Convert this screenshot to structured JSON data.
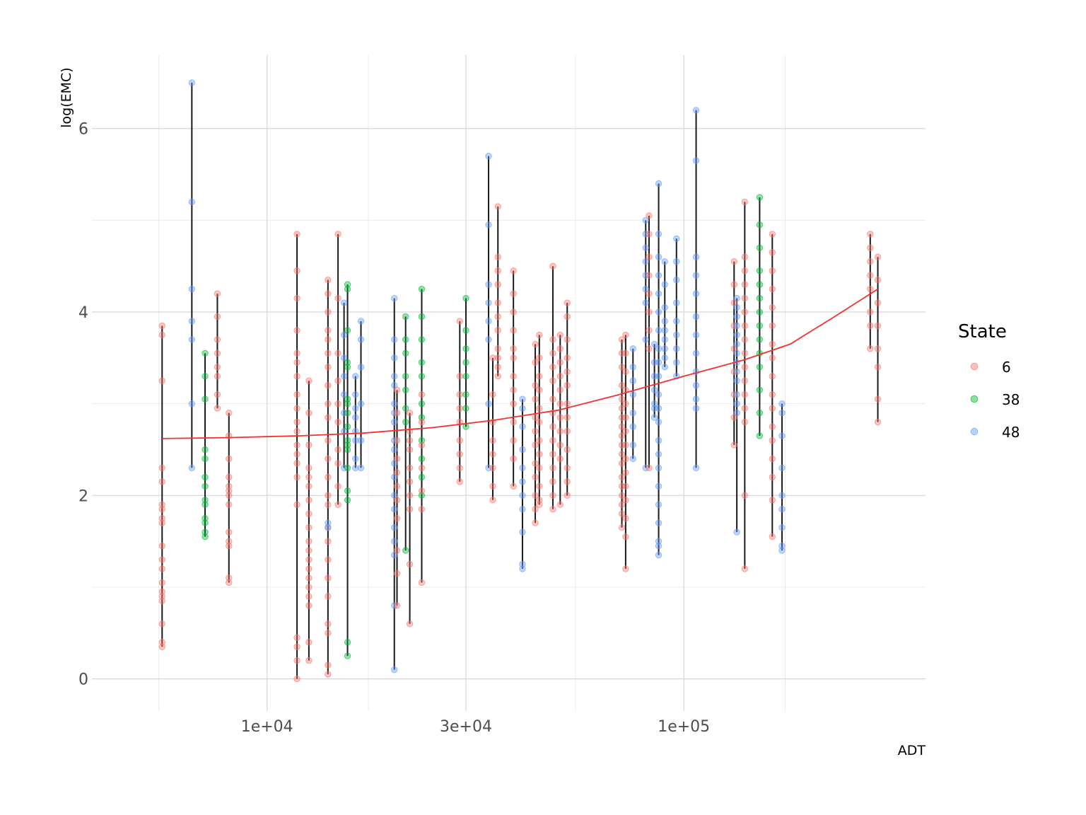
{
  "chart_data": {
    "type": "scatter",
    "title": "",
    "xlabel": "ADT",
    "ylabel": "log(EMC)",
    "x_scale": "log10",
    "xlim": [
      3800,
      380000
    ],
    "ylim": [
      -0.35,
      6.8
    ],
    "grid": true,
    "x_ticks": [
      {
        "value": 10000,
        "label": "1e+04"
      },
      {
        "value": 30000,
        "label": "3e+04"
      },
      {
        "value": 100000,
        "label": "1e+05"
      }
    ],
    "x_minor_ticks": [
      5500,
      17500,
      55000,
      175000
    ],
    "y_ticks": [
      {
        "value": 0,
        "label": "0"
      },
      {
        "value": 2,
        "label": "2"
      },
      {
        "value": 4,
        "label": "4"
      },
      {
        "value": 6,
        "label": "6"
      }
    ],
    "y_minor_ticks": [
      1,
      3,
      5
    ],
    "legend": {
      "title": "State",
      "position": "right",
      "entries": [
        {
          "label": "6",
          "color": "#F8766D"
        },
        {
          "label": "38",
          "color": "#00BA38"
        },
        {
          "label": "48",
          "color": "#619CFF"
        }
      ]
    },
    "groups": [
      {
        "adt": 5600,
        "state": "6",
        "values": [
          3.85,
          3.75,
          3.25,
          2.3,
          2.15,
          1.9,
          1.85,
          1.75,
          1.7,
          1.45,
          1.3,
          1.2,
          1.05,
          0.95,
          0.9,
          0.85,
          0.6,
          0.4,
          0.35
        ]
      },
      {
        "adt": 6600,
        "state": "48",
        "values": [
          6.5,
          5.2,
          4.25,
          3.9,
          3.7,
          3.0,
          2.3
        ]
      },
      {
        "adt": 7100,
        "state": "38",
        "values": [
          3.55,
          3.3,
          3.05,
          2.5,
          2.4,
          2.2,
          2.1,
          1.95,
          1.9,
          1.75,
          1.7,
          1.6,
          1.55
        ]
      },
      {
        "adt": 7600,
        "state": "6",
        "values": [
          4.2,
          3.95,
          3.7,
          3.55,
          3.4,
          3.3,
          3.1,
          2.95
        ]
      },
      {
        "adt": 8100,
        "state": "6",
        "values": [
          2.9,
          2.65,
          2.4,
          2.2,
          2.1,
          2.05,
          2.0,
          1.9,
          1.6,
          1.5,
          1.45,
          1.1,
          1.05
        ]
      },
      {
        "adt": 11800,
        "state": "6",
        "values": [
          4.85,
          4.45,
          4.15,
          3.8,
          3.55,
          3.45,
          3.3,
          3.1,
          2.95,
          2.8,
          2.7,
          2.55,
          2.45,
          2.35,
          2.2,
          1.9,
          0.45,
          0.35,
          0.2,
          0.0
        ]
      },
      {
        "adt": 12600,
        "state": "6",
        "values": [
          3.25,
          2.9,
          2.55,
          2.3,
          2.2,
          2.1,
          1.95,
          1.8,
          1.65,
          1.5,
          1.4,
          1.3,
          1.2,
          1.1,
          1.0,
          0.9,
          0.8,
          0.4,
          0.2
        ]
      },
      {
        "adt": 14000,
        "state": "6",
        "values": [
          4.35,
          4.2,
          4.0,
          3.8,
          3.7,
          3.55,
          3.4,
          3.2,
          3.0,
          2.85,
          2.6,
          2.4,
          2.2,
          2.0,
          1.9,
          1.65,
          1.5,
          1.3,
          1.1,
          0.9,
          0.6,
          0.5,
          0.15,
          0.05
        ]
      },
      {
        "adt": 14000,
        "state": "48",
        "values": [
          1.7,
          1.65
        ]
      },
      {
        "adt": 14800,
        "state": "6",
        "values": [
          4.85,
          4.15,
          3.55,
          3.25,
          3.0,
          2.8,
          2.5,
          2.35,
          2.1,
          1.9
        ]
      },
      {
        "adt": 15300,
        "state": "48",
        "values": [
          4.1,
          3.75,
          3.5,
          3.3,
          3.1,
          2.9,
          2.7,
          2.3
        ]
      },
      {
        "adt": 15600,
        "state": "38",
        "values": [
          4.3,
          4.25,
          3.8,
          3.45,
          3.4,
          3.05,
          3.0,
          2.9,
          2.75,
          2.6,
          2.55,
          2.5,
          2.3,
          2.05,
          1.95,
          0.4,
          0.25
        ]
      },
      {
        "adt": 16300,
        "state": "48",
        "values": [
          3.3,
          3.1,
          2.95,
          2.85,
          2.7,
          2.6,
          2.4,
          2.3
        ]
      },
      {
        "adt": 16800,
        "state": "48",
        "values": [
          3.9,
          3.7,
          3.4,
          3.0,
          2.6,
          2.3
        ]
      },
      {
        "adt": 20200,
        "state": "48",
        "values": [
          4.15,
          3.7,
          3.5,
          3.3,
          3.2,
          3.0,
          2.9,
          2.8,
          2.6,
          2.5,
          2.35,
          2.2,
          2.0,
          1.85,
          1.65,
          1.5,
          1.35,
          0.8,
          0.1
        ]
      },
      {
        "adt": 20500,
        "state": "6",
        "values": [
          3.15,
          2.9,
          2.6,
          2.4,
          2.25,
          2.1,
          1.95,
          1.75,
          1.4,
          1.15,
          0.8
        ]
      },
      {
        "adt": 21500,
        "state": "38",
        "values": [
          3.95,
          3.7,
          3.55,
          3.3,
          3.15,
          2.95,
          2.8,
          1.4
        ]
      },
      {
        "adt": 22000,
        "state": "6",
        "values": [
          2.9,
          2.7,
          2.6,
          2.5,
          2.3,
          2.15,
          2.0,
          1.85,
          1.25,
          0.6
        ]
      },
      {
        "adt": 23500,
        "state": "38",
        "values": [
          4.25,
          3.95,
          3.7,
          3.45,
          3.3,
          3.0,
          2.85,
          2.6,
          2.4,
          2.2,
          2.0
        ]
      },
      {
        "adt": 23500,
        "state": "6",
        "values": [
          3.1,
          2.8,
          2.55,
          2.3,
          2.05,
          1.85,
          1.05
        ]
      },
      {
        "adt": 29000,
        "state": "6",
        "values": [
          3.9,
          3.3,
          3.1,
          2.95,
          2.8,
          2.6,
          2.45,
          2.3,
          2.15
        ]
      },
      {
        "adt": 30000,
        "state": "38",
        "values": [
          4.15,
          3.8,
          3.6,
          3.45,
          3.3,
          3.1,
          2.95,
          2.75
        ]
      },
      {
        "adt": 34000,
        "state": "48",
        "values": [
          5.7,
          4.95,
          4.3,
          4.1,
          3.9,
          3.7,
          3.0,
          2.3
        ]
      },
      {
        "adt": 34800,
        "state": "6",
        "values": [
          3.5,
          3.1,
          2.8,
          2.6,
          2.45,
          2.3,
          2.1,
          1.95
        ]
      },
      {
        "adt": 35800,
        "state": "6",
        "values": [
          5.15,
          4.6,
          4.45,
          4.3,
          4.1,
          3.95,
          3.8,
          3.6,
          3.5,
          3.4,
          3.3
        ]
      },
      {
        "adt": 39000,
        "state": "6",
        "values": [
          4.45,
          4.2,
          4.0,
          3.8,
          3.6,
          3.5,
          3.3,
          3.15,
          3.0,
          2.8,
          2.6,
          2.4,
          2.1
        ]
      },
      {
        "adt": 41000,
        "state": "48",
        "values": [
          3.05,
          2.95,
          2.75,
          2.5,
          2.3,
          2.15,
          2.0,
          1.85,
          1.6,
          1.25,
          1.2
        ]
      },
      {
        "adt": 44000,
        "state": "6",
        "values": [
          3.65,
          3.45,
          3.2,
          3.05,
          2.85,
          2.7,
          2.55,
          2.35,
          2.2,
          2.0,
          1.85,
          1.7
        ]
      },
      {
        "adt": 45000,
        "state": "6",
        "values": [
          3.75,
          3.5,
          3.3,
          3.15,
          2.95,
          2.8,
          2.6,
          2.45,
          2.3,
          2.1,
          1.95,
          1.9
        ]
      },
      {
        "adt": 48500,
        "state": "6",
        "values": [
          4.5,
          3.7,
          3.55,
          3.4,
          3.25,
          3.05,
          2.9,
          2.75,
          2.6,
          2.45,
          2.3,
          2.15,
          2.0,
          1.85
        ]
      },
      {
        "adt": 50500,
        "state": "6",
        "values": [
          3.75,
          3.6,
          3.45,
          3.3,
          3.15,
          3.0,
          2.85,
          2.7,
          2.55,
          2.4,
          1.9
        ]
      },
      {
        "adt": 52500,
        "state": "6",
        "values": [
          4.1,
          3.95,
          3.7,
          3.5,
          3.35,
          3.2,
          3.0,
          2.85,
          2.7,
          2.5,
          2.3,
          2.15,
          2.0
        ]
      },
      {
        "adt": 71000,
        "state": "6",
        "values": [
          3.7,
          3.55,
          3.4,
          3.2,
          3.05,
          2.95,
          2.85,
          2.75,
          2.65,
          2.55,
          2.45,
          2.35,
          2.2,
          2.1,
          2.0,
          1.9,
          1.8,
          1.65
        ]
      },
      {
        "adt": 72500,
        "state": "6",
        "values": [
          3.75,
          3.55,
          3.35,
          3.15,
          3.0,
          2.85,
          2.7,
          2.55,
          2.4,
          2.25,
          2.1,
          1.95,
          1.75,
          1.55,
          1.2
        ]
      },
      {
        "adt": 75500,
        "state": "48",
        "values": [
          3.6,
          3.4,
          3.25,
          3.1,
          2.9,
          2.75,
          2.55,
          2.4
        ]
      },
      {
        "adt": 81000,
        "state": "48",
        "values": [
          5.0,
          4.85,
          4.7,
          4.55,
          4.4,
          4.25,
          4.1,
          3.7,
          2.3
        ]
      },
      {
        "adt": 82500,
        "state": "6",
        "values": [
          5.05,
          4.85,
          4.6,
          4.4,
          4.2,
          4.0,
          3.8,
          3.6,
          2.3
        ]
      },
      {
        "adt": 85000,
        "state": "48",
        "values": [
          3.65,
          3.45,
          3.3,
          3.15,
          3.0,
          2.95,
          2.85
        ]
      },
      {
        "adt": 87000,
        "state": "48",
        "values": [
          5.4,
          4.85,
          4.6,
          4.4,
          4.2,
          4.0,
          3.8,
          3.6,
          3.45,
          3.3,
          3.1,
          2.95,
          2.8,
          2.6,
          2.45,
          2.3,
          2.1,
          1.9,
          1.7,
          1.5,
          1.45,
          1.35
        ]
      },
      {
        "adt": 90000,
        "state": "48",
        "values": [
          4.55,
          4.3,
          4.05,
          3.9,
          3.8,
          3.7,
          3.6,
          3.5,
          3.4
        ]
      },
      {
        "adt": 96000,
        "state": "48",
        "values": [
          4.8,
          4.55,
          4.35,
          4.1,
          3.9,
          3.75,
          3.6,
          3.45,
          3.3
        ]
      },
      {
        "adt": 107000,
        "state": "48",
        "values": [
          6.2,
          5.65,
          4.6,
          4.4,
          4.2,
          3.95,
          3.75,
          3.55,
          3.35,
          3.2,
          3.05,
          2.95,
          2.3
        ]
      },
      {
        "adt": 132000,
        "state": "6",
        "values": [
          4.55,
          4.3,
          4.1,
          3.85,
          3.6,
          3.35,
          3.1,
          2.85,
          2.55
        ]
      },
      {
        "adt": 134000,
        "state": "48",
        "values": [
          4.15,
          4.05,
          3.95,
          3.85,
          3.75,
          3.65,
          3.55,
          3.45,
          3.35,
          3.25,
          3.1,
          3.0,
          2.9,
          1.6
        ]
      },
      {
        "adt": 140000,
        "state": "6",
        "values": [
          5.2,
          4.6,
          4.45,
          4.3,
          4.15,
          4.0,
          3.85,
          3.7,
          3.55,
          3.4,
          3.25,
          3.1,
          2.95,
          2.8,
          2.0,
          1.2
        ]
      },
      {
        "adt": 152000,
        "state": "38",
        "values": [
          5.25,
          4.95,
          4.7,
          4.45,
          4.3,
          4.15,
          4.0,
          3.85,
          3.7,
          3.55,
          3.4,
          3.15,
          2.9,
          2.65
        ]
      },
      {
        "adt": 163000,
        "state": "6",
        "values": [
          4.85,
          4.65,
          4.45,
          4.25,
          4.05,
          3.85,
          3.65,
          3.5,
          3.3,
          3.1,
          2.95,
          2.75,
          2.6,
          2.4,
          2.2,
          1.95,
          1.55
        ]
      },
      {
        "adt": 172000,
        "state": "48",
        "values": [
          3.0,
          2.9,
          2.65,
          2.3,
          2.0,
          1.85,
          1.65,
          1.45,
          1.4
        ]
      },
      {
        "adt": 280000,
        "state": "6",
        "values": [
          4.85,
          4.7,
          4.55,
          4.4,
          4.25,
          4.0,
          3.85,
          3.6
        ]
      },
      {
        "adt": 292000,
        "state": "6",
        "values": [
          4.6,
          4.35,
          4.1,
          3.85,
          3.6,
          3.4,
          3.05,
          2.8
        ]
      }
    ],
    "fit_line": {
      "color": "#F8312F",
      "x": [
        5600,
        8000,
        12000,
        17000,
        25000,
        35000,
        50000,
        70000,
        100000,
        140000,
        180000,
        230000,
        292000
      ],
      "y": [
        2.62,
        2.63,
        2.65,
        2.68,
        2.74,
        2.82,
        2.93,
        3.1,
        3.3,
        3.48,
        3.65,
        3.95,
        4.25
      ]
    }
  }
}
